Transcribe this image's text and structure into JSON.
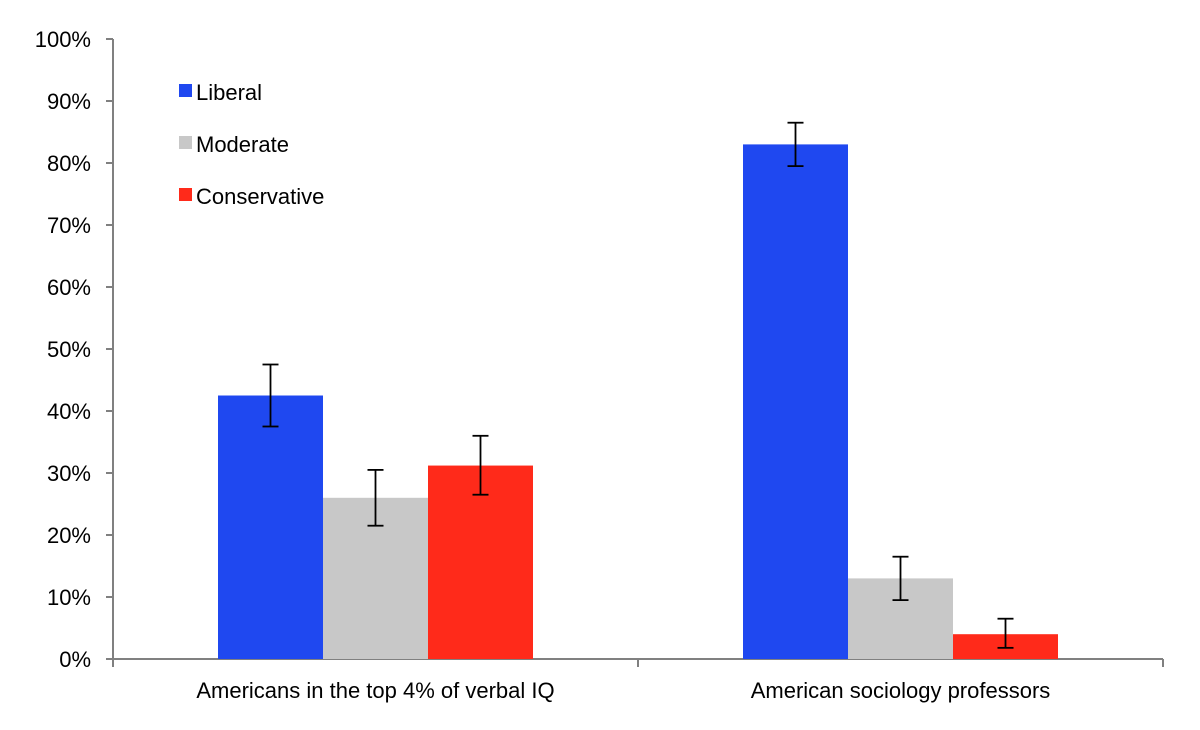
{
  "chart_data": {
    "type": "bar",
    "title": "",
    "xlabel": "",
    "ylabel": "",
    "ylim": [
      0,
      100
    ],
    "y_ticks": [
      "0%",
      "10%",
      "20%",
      "30%",
      "40%",
      "50%",
      "60%",
      "70%",
      "80%",
      "90%",
      "100%"
    ],
    "categories": [
      "Americans in the top 4% of verbal IQ",
      "American sociology professors"
    ],
    "series": [
      {
        "name": "Liberal",
        "color": "#1f48f0",
        "values": [
          42.5,
          83
        ],
        "err_low": [
          37.5,
          79.5
        ],
        "err_high": [
          47.5,
          86.5
        ]
      },
      {
        "name": "Moderate",
        "color": "#c8c8c8",
        "values": [
          26,
          13
        ],
        "err_low": [
          21.5,
          9.5
        ],
        "err_high": [
          30.5,
          16.5
        ]
      },
      {
        "name": "Conservative",
        "color": "#ff2a1a",
        "values": [
          31.2,
          4
        ],
        "err_low": [
          26.5,
          1.8
        ],
        "err_high": [
          36,
          6.5
        ]
      }
    ],
    "legend_position": "top-left",
    "grid": false
  }
}
